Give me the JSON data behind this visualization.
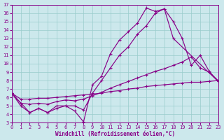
{
  "bg_color": "#cce8ec",
  "line_color": "#880088",
  "grid_color": "#99cccc",
  "xlabel": "Windchill (Refroidissement éolien,°C)",
  "xlim": [
    0,
    23
  ],
  "ylim": [
    3,
    17
  ],
  "xticks": [
    0,
    1,
    2,
    3,
    4,
    5,
    6,
    7,
    8,
    9,
    10,
    11,
    12,
    13,
    14,
    15,
    16,
    17,
    18,
    19,
    20,
    21,
    22,
    23
  ],
  "yticks": [
    3,
    4,
    5,
    6,
    7,
    8,
    9,
    10,
    11,
    12,
    13,
    14,
    15,
    16,
    17
  ],
  "line1_x": [
    0,
    1,
    2,
    3,
    4,
    5,
    6,
    7,
    8,
    9,
    10,
    11,
    12,
    13,
    14,
    15,
    16,
    17,
    18,
    19,
    20,
    21,
    22,
    23
  ],
  "line1_y": [
    6.5,
    5.0,
    4.2,
    4.7,
    4.2,
    4.7,
    5.0,
    4.4,
    3.1,
    7.5,
    8.5,
    11.2,
    12.8,
    13.8,
    14.8,
    16.6,
    16.2,
    16.5,
    15.0,
    13.0,
    9.8,
    11.0,
    9.1,
    7.9
  ],
  "line2_x": [
    0,
    2,
    3,
    4,
    5,
    6,
    7,
    8,
    9,
    10,
    11,
    12,
    13,
    14,
    15,
    16,
    17,
    18,
    23
  ],
  "line2_y": [
    6.5,
    4.2,
    4.7,
    4.2,
    5.0,
    5.0,
    5.0,
    4.5,
    6.5,
    8.0,
    9.5,
    11.0,
    12.0,
    13.5,
    14.5,
    16.0,
    16.5,
    13.0,
    7.9
  ],
  "line3_x": [
    0,
    1,
    2,
    3,
    4,
    5,
    6,
    7,
    8,
    9,
    10,
    11,
    12,
    13,
    14,
    15,
    16,
    17,
    18,
    19,
    20,
    21,
    22,
    23
  ],
  "line3_y": [
    6.5,
    5.3,
    5.2,
    5.3,
    5.2,
    5.5,
    5.7,
    5.6,
    5.8,
    6.2,
    6.6,
    7.1,
    7.5,
    7.9,
    8.3,
    8.7,
    9.1,
    9.4,
    9.8,
    10.2,
    10.8,
    9.5,
    9.0,
    8.0
  ],
  "line4_x": [
    0,
    1,
    2,
    3,
    4,
    5,
    6,
    7,
    8,
    9,
    10,
    11,
    12,
    13,
    14,
    15,
    16,
    17,
    18,
    19,
    20,
    21,
    22,
    23
  ],
  "line4_y": [
    6.5,
    5.8,
    5.8,
    5.9,
    5.9,
    6.0,
    6.1,
    6.2,
    6.3,
    6.4,
    6.5,
    6.7,
    6.8,
    7.0,
    7.1,
    7.3,
    7.4,
    7.5,
    7.6,
    7.7,
    7.8,
    7.8,
    7.9,
    8.0
  ]
}
